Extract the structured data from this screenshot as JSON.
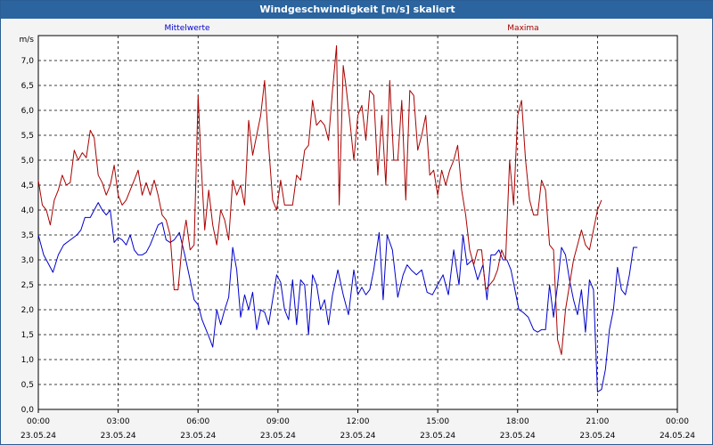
{
  "window": {
    "title": "Windgeschwindigkeit [m/s] skaliert"
  },
  "colors": {
    "mean": "#0000cc",
    "max": "#aa0000",
    "grid": "#000000",
    "titlebar": "#2b649e"
  },
  "chart_data": {
    "type": "line",
    "title": "Windgeschwindigkeit [m/s] skaliert",
    "ylabel": "m/s",
    "xlabel": "",
    "ylim": [
      0,
      7.5
    ],
    "yticks": [
      "0,0",
      "0,5",
      "1,0",
      "1,5",
      "2,0",
      "2,5",
      "3,0",
      "3,5",
      "4,0",
      "4,5",
      "5,0",
      "5,5",
      "6,0",
      "6,5",
      "7,0"
    ],
    "xticks": [
      {
        "time": "00:00",
        "date": "23.05.24"
      },
      {
        "time": "03:00",
        "date": "23.05.24"
      },
      {
        "time": "06:00",
        "date": "23.05.24"
      },
      {
        "time": "09:00",
        "date": "23.05.24"
      },
      {
        "time": "12:00",
        "date": "23.05.24"
      },
      {
        "time": "15:00",
        "date": "23.05.24"
      },
      {
        "time": "18:00",
        "date": "23.05.24"
      },
      {
        "time": "21:00",
        "date": "23.05.24"
      },
      {
        "time": "00:00",
        "date": "24.05.24"
      }
    ],
    "xlim_hours": [
      0,
      24
    ],
    "series": [
      {
        "name": "Mittelwerte",
        "color": "#0000cc",
        "points": [
          [
            0.0,
            3.5
          ],
          [
            0.2,
            3.1
          ],
          [
            0.4,
            2.9
          ],
          [
            0.55,
            2.75
          ],
          [
            0.75,
            3.1
          ],
          [
            0.95,
            3.3
          ],
          [
            1.2,
            3.4
          ],
          [
            1.45,
            3.5
          ],
          [
            1.6,
            3.6
          ],
          [
            1.75,
            3.85
          ],
          [
            1.95,
            3.85
          ],
          [
            2.1,
            4.0
          ],
          [
            2.25,
            4.15
          ],
          [
            2.4,
            4.0
          ],
          [
            2.55,
            3.9
          ],
          [
            2.7,
            4.0
          ],
          [
            2.85,
            3.35
          ],
          [
            3.0,
            3.45
          ],
          [
            3.15,
            3.4
          ],
          [
            3.3,
            3.3
          ],
          [
            3.45,
            3.5
          ],
          [
            3.6,
            3.2
          ],
          [
            3.75,
            3.1
          ],
          [
            3.9,
            3.1
          ],
          [
            4.05,
            3.15
          ],
          [
            4.2,
            3.3
          ],
          [
            4.35,
            3.5
          ],
          [
            4.5,
            3.7
          ],
          [
            4.65,
            3.75
          ],
          [
            4.8,
            3.4
          ],
          [
            4.95,
            3.35
          ],
          [
            5.1,
            3.4
          ],
          [
            5.3,
            3.55
          ],
          [
            5.5,
            3.1
          ],
          [
            5.7,
            2.6
          ],
          [
            5.85,
            2.2
          ],
          [
            6.0,
            2.1
          ],
          [
            6.15,
            1.8
          ],
          [
            6.3,
            1.6
          ],
          [
            6.45,
            1.4
          ],
          [
            6.55,
            1.25
          ],
          [
            6.7,
            2.0
          ],
          [
            6.85,
            1.7
          ],
          [
            7.0,
            2.0
          ],
          [
            7.15,
            2.25
          ],
          [
            7.3,
            3.25
          ],
          [
            7.45,
            2.8
          ],
          [
            7.6,
            1.85
          ],
          [
            7.75,
            2.3
          ],
          [
            7.9,
            2.0
          ],
          [
            8.05,
            2.35
          ],
          [
            8.2,
            1.6
          ],
          [
            8.35,
            2.0
          ],
          [
            8.5,
            1.95
          ],
          [
            8.65,
            1.7
          ],
          [
            8.8,
            2.2
          ],
          [
            8.95,
            2.7
          ],
          [
            9.1,
            2.55
          ],
          [
            9.25,
            2.0
          ],
          [
            9.4,
            1.8
          ],
          [
            9.55,
            2.6
          ],
          [
            9.7,
            1.7
          ],
          [
            9.85,
            2.6
          ],
          [
            10.0,
            2.5
          ],
          [
            10.15,
            1.5
          ],
          [
            10.3,
            2.7
          ],
          [
            10.45,
            2.5
          ],
          [
            10.6,
            2.0
          ],
          [
            10.75,
            2.2
          ],
          [
            10.9,
            1.7
          ],
          [
            11.05,
            2.3
          ],
          [
            11.25,
            2.8
          ],
          [
            11.45,
            2.3
          ],
          [
            11.65,
            1.9
          ],
          [
            11.85,
            2.8
          ],
          [
            12.0,
            2.3
          ],
          [
            12.15,
            2.45
          ],
          [
            12.3,
            2.3
          ],
          [
            12.45,
            2.4
          ],
          [
            12.6,
            2.8
          ],
          [
            12.8,
            3.55
          ],
          [
            12.95,
            2.2
          ],
          [
            13.1,
            3.5
          ],
          [
            13.3,
            3.2
          ],
          [
            13.5,
            2.25
          ],
          [
            13.7,
            2.7
          ],
          [
            13.85,
            2.9
          ],
          [
            14.0,
            2.8
          ],
          [
            14.2,
            2.7
          ],
          [
            14.4,
            2.8
          ],
          [
            14.6,
            2.35
          ],
          [
            14.8,
            2.3
          ],
          [
            15.0,
            2.5
          ],
          [
            15.2,
            2.7
          ],
          [
            15.4,
            2.3
          ],
          [
            15.6,
            3.2
          ],
          [
            15.8,
            2.5
          ],
          [
            15.95,
            3.5
          ],
          [
            16.1,
            2.9
          ],
          [
            16.3,
            3.0
          ],
          [
            16.5,
            2.6
          ],
          [
            16.7,
            2.9
          ],
          [
            16.85,
            2.2
          ],
          [
            17.0,
            3.1
          ],
          [
            17.15,
            3.1
          ],
          [
            17.3,
            3.2
          ],
          [
            17.45,
            3.0
          ],
          [
            17.6,
            3.0
          ],
          [
            17.75,
            2.8
          ],
          [
            17.9,
            2.4
          ],
          [
            18.05,
            2.0
          ],
          [
            18.2,
            1.95
          ],
          [
            18.4,
            1.85
          ],
          [
            18.6,
            1.6
          ],
          [
            18.75,
            1.55
          ],
          [
            18.9,
            1.6
          ],
          [
            19.05,
            1.6
          ],
          [
            19.2,
            2.5
          ],
          [
            19.35,
            1.85
          ],
          [
            19.5,
            2.5
          ],
          [
            19.65,
            3.25
          ],
          [
            19.8,
            3.1
          ],
          [
            19.95,
            2.6
          ],
          [
            20.1,
            2.2
          ],
          [
            20.25,
            1.9
          ],
          [
            20.4,
            2.4
          ],
          [
            20.55,
            1.55
          ],
          [
            20.7,
            2.6
          ],
          [
            20.85,
            2.4
          ],
          [
            21.0,
            0.35
          ],
          [
            21.15,
            0.4
          ],
          [
            21.3,
            0.8
          ],
          [
            21.45,
            1.6
          ],
          [
            21.6,
            2.0
          ],
          [
            21.75,
            2.85
          ],
          [
            21.9,
            2.4
          ],
          [
            22.05,
            2.3
          ],
          [
            22.2,
            2.7
          ],
          [
            22.35,
            3.25
          ],
          [
            22.5,
            3.25
          ]
        ]
      },
      {
        "name": "Maxima",
        "color": "#aa0000",
        "points": [
          [
            0.0,
            4.6
          ],
          [
            0.15,
            4.1
          ],
          [
            0.3,
            4.0
          ],
          [
            0.45,
            3.7
          ],
          [
            0.6,
            4.2
          ],
          [
            0.75,
            4.4
          ],
          [
            0.9,
            4.7
          ],
          [
            1.05,
            4.5
          ],
          [
            1.2,
            4.55
          ],
          [
            1.35,
            5.2
          ],
          [
            1.5,
            5.0
          ],
          [
            1.65,
            5.15
          ],
          [
            1.8,
            5.05
          ],
          [
            1.95,
            5.6
          ],
          [
            2.1,
            5.45
          ],
          [
            2.25,
            4.7
          ],
          [
            2.4,
            4.55
          ],
          [
            2.55,
            4.3
          ],
          [
            2.7,
            4.5
          ],
          [
            2.85,
            4.9
          ],
          [
            3.0,
            4.3
          ],
          [
            3.15,
            4.1
          ],
          [
            3.3,
            4.2
          ],
          [
            3.45,
            4.4
          ],
          [
            3.6,
            4.6
          ],
          [
            3.75,
            4.8
          ],
          [
            3.9,
            4.3
          ],
          [
            4.05,
            4.55
          ],
          [
            4.2,
            4.3
          ],
          [
            4.35,
            4.6
          ],
          [
            4.5,
            4.3
          ],
          [
            4.65,
            3.9
          ],
          [
            4.8,
            3.8
          ],
          [
            4.95,
            3.5
          ],
          [
            5.1,
            2.4
          ],
          [
            5.25,
            2.4
          ],
          [
            5.4,
            3.3
          ],
          [
            5.55,
            3.8
          ],
          [
            5.7,
            3.2
          ],
          [
            5.85,
            3.3
          ],
          [
            6.0,
            6.3
          ],
          [
            6.1,
            5.1
          ],
          [
            6.25,
            3.6
          ],
          [
            6.4,
            4.4
          ],
          [
            6.55,
            3.7
          ],
          [
            6.7,
            3.3
          ],
          [
            6.85,
            4.0
          ],
          [
            7.0,
            3.8
          ],
          [
            7.15,
            3.4
          ],
          [
            7.3,
            4.6
          ],
          [
            7.45,
            4.3
          ],
          [
            7.6,
            4.5
          ],
          [
            7.75,
            4.1
          ],
          [
            7.9,
            5.8
          ],
          [
            8.05,
            5.1
          ],
          [
            8.2,
            5.5
          ],
          [
            8.35,
            5.9
          ],
          [
            8.5,
            6.6
          ],
          [
            8.65,
            5.3
          ],
          [
            8.8,
            4.2
          ],
          [
            8.95,
            4.0
          ],
          [
            9.1,
            4.6
          ],
          [
            9.25,
            4.1
          ],
          [
            9.4,
            4.1
          ],
          [
            9.55,
            4.1
          ],
          [
            9.7,
            4.7
          ],
          [
            9.85,
            4.6
          ],
          [
            10.0,
            5.2
          ],
          [
            10.15,
            5.3
          ],
          [
            10.3,
            6.2
          ],
          [
            10.45,
            5.7
          ],
          [
            10.6,
            5.8
          ],
          [
            10.75,
            5.7
          ],
          [
            10.9,
            5.4
          ],
          [
            11.05,
            6.4
          ],
          [
            11.2,
            7.3
          ],
          [
            11.3,
            4.1
          ],
          [
            11.45,
            6.9
          ],
          [
            11.55,
            6.5
          ],
          [
            11.7,
            5.8
          ],
          [
            11.85,
            5.0
          ],
          [
            12.0,
            5.9
          ],
          [
            12.15,
            6.1
          ],
          [
            12.3,
            5.4
          ],
          [
            12.45,
            6.4
          ],
          [
            12.6,
            6.3
          ],
          [
            12.75,
            4.7
          ],
          [
            12.9,
            5.9
          ],
          [
            13.05,
            4.5
          ],
          [
            13.2,
            6.6
          ],
          [
            13.35,
            5.0
          ],
          [
            13.5,
            5.0
          ],
          [
            13.65,
            6.2
          ],
          [
            13.8,
            4.2
          ],
          [
            13.95,
            6.4
          ],
          [
            14.1,
            6.3
          ],
          [
            14.25,
            5.2
          ],
          [
            14.4,
            5.5
          ],
          [
            14.55,
            5.9
          ],
          [
            14.7,
            4.7
          ],
          [
            14.85,
            4.8
          ],
          [
            15.0,
            4.3
          ],
          [
            15.15,
            4.8
          ],
          [
            15.3,
            4.5
          ],
          [
            15.45,
            4.8
          ],
          [
            15.6,
            5.0
          ],
          [
            15.75,
            5.3
          ],
          [
            15.9,
            4.4
          ],
          [
            16.05,
            3.9
          ],
          [
            16.2,
            3.2
          ],
          [
            16.35,
            2.9
          ],
          [
            16.5,
            3.2
          ],
          [
            16.65,
            3.2
          ],
          [
            16.8,
            2.4
          ],
          [
            16.95,
            2.5
          ],
          [
            17.1,
            2.6
          ],
          [
            17.25,
            2.8
          ],
          [
            17.4,
            3.2
          ],
          [
            17.55,
            3.0
          ],
          [
            17.7,
            5.0
          ],
          [
            17.85,
            4.1
          ],
          [
            18.0,
            5.9
          ],
          [
            18.15,
            6.2
          ],
          [
            18.3,
            5.0
          ],
          [
            18.45,
            4.2
          ],
          [
            18.6,
            3.9
          ],
          [
            18.75,
            3.9
          ],
          [
            18.9,
            4.6
          ],
          [
            19.05,
            4.4
          ],
          [
            19.2,
            3.3
          ],
          [
            19.35,
            3.2
          ],
          [
            19.5,
            1.4
          ],
          [
            19.65,
            1.1
          ],
          [
            19.8,
            2.0
          ],
          [
            19.95,
            2.5
          ],
          [
            20.1,
            3.0
          ],
          [
            20.25,
            3.3
          ],
          [
            20.4,
            3.6
          ],
          [
            20.55,
            3.3
          ],
          [
            20.7,
            3.2
          ],
          [
            20.85,
            3.6
          ],
          [
            21.0,
            4.0
          ],
          [
            21.15,
            4.2
          ]
        ]
      }
    ]
  }
}
